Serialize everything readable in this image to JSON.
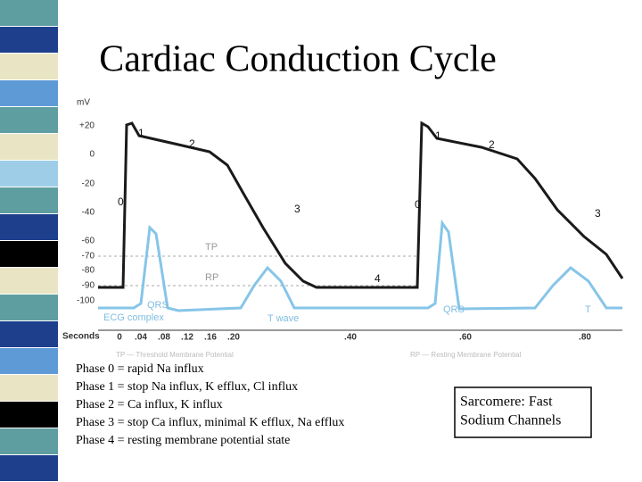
{
  "slide": {
    "title": "Cardiac Conduction Cycle",
    "figure": {
      "y_unit": "mV",
      "y_labels": [
        "+20",
        "0",
        "-20",
        "-40",
        "-60",
        "-70",
        "-80",
        "-90",
        "-100"
      ],
      "x_axis_title": "Seconds",
      "x_labels": [
        "0",
        ".04",
        ".08",
        ".12",
        ".16",
        ".20",
        ".40",
        ".60",
        ".80"
      ],
      "phase_labels": [
        "1",
        "2",
        "0",
        "3",
        "4",
        "1",
        "2",
        "0",
        "3"
      ],
      "threshold_label": "TP",
      "resting_label": "RP",
      "ecg_labels": [
        "QRS",
        "ECG complex",
        "T wave",
        "QRS",
        "T"
      ],
      "captions": [
        "TP — Threshold Membrane Potential",
        "RP — Resting Membrane Potential"
      ]
    },
    "phases": [
      "Phase 0 = rapid Na influx",
      "Phase 1 = stop Na influx, K efflux, Cl influx",
      "Phase 2 = Ca influx, K influx",
      "Phase 3 = stop Ca influx, minimal K efflux, Na efflux",
      "Phase 4 = resting membrane potential state"
    ],
    "note": [
      "Sarcomere: Fast",
      "Sodium Channels"
    ]
  }
}
